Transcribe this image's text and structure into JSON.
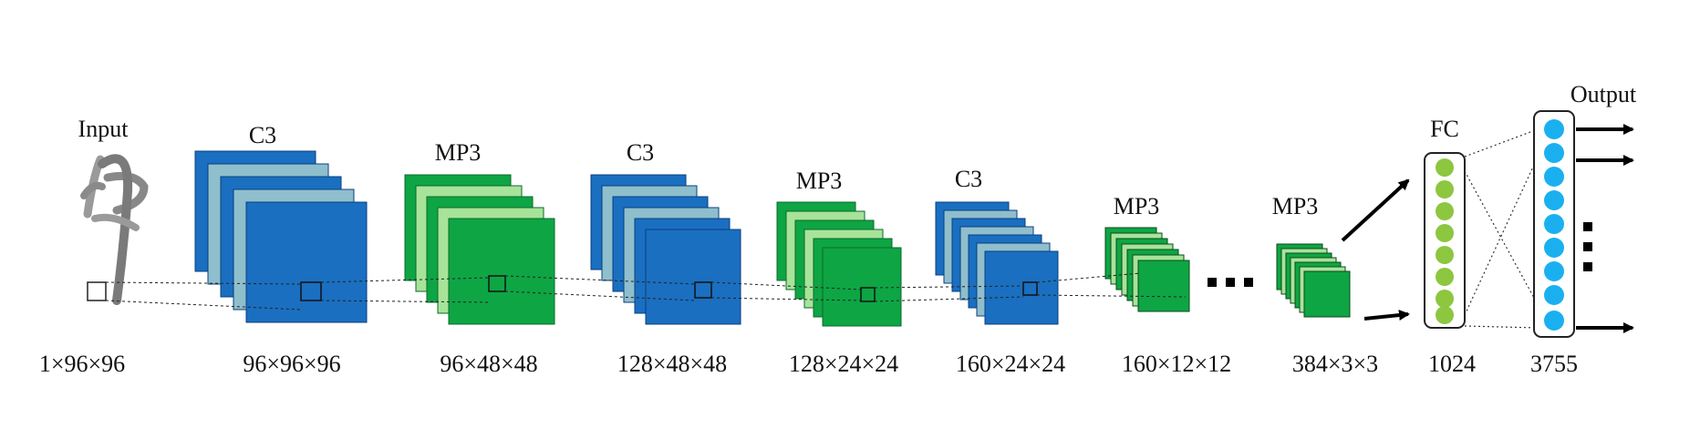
{
  "labels": {
    "input": "Input",
    "output": "Output",
    "fc": "FC",
    "ellipsis": "▪▪▪"
  },
  "layers": [
    {
      "name": "",
      "dims": "1×96×96"
    },
    {
      "name": "C3",
      "dims": "96×96×96"
    },
    {
      "name": "MP3",
      "dims": "96×48×48"
    },
    {
      "name": "C3",
      "dims": "128×48×48"
    },
    {
      "name": "MP3",
      "dims": "128×24×24"
    },
    {
      "name": "C3",
      "dims": "160×24×24"
    },
    {
      "name": "MP3",
      "dims": "160×12×12"
    },
    {
      "name": "MP3",
      "dims": "384×3×3"
    },
    {
      "name": "FC",
      "dims": "1024"
    },
    {
      "name": "",
      "dims": "3755"
    }
  ],
  "colors": {
    "conv_blue": "#1a6fc0",
    "conv_teal": "#8fbfcc",
    "pool_green": "#0ea544",
    "pool_light": "#a8e39a",
    "fc_node": "#8dc63f",
    "out_node": "#1ab0f0"
  }
}
